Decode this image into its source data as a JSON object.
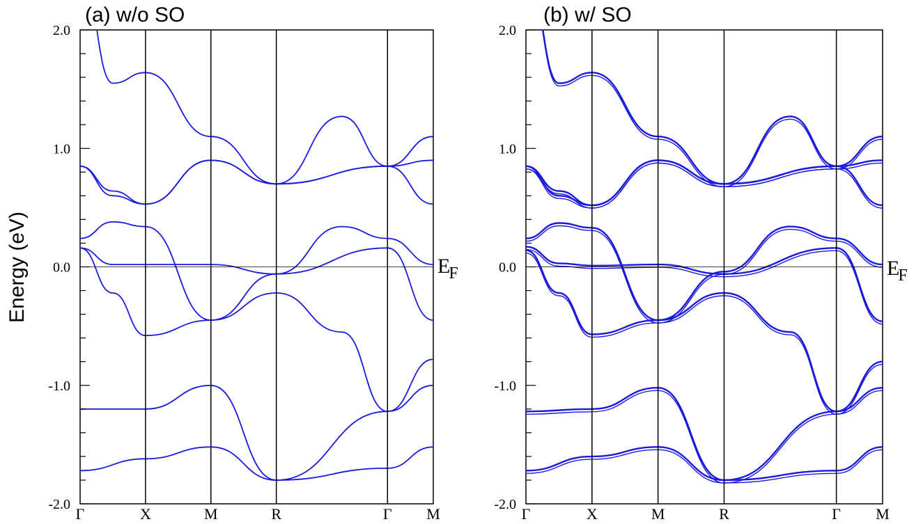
{
  "chart_data": {
    "type": "line",
    "ylabel": "Energy (eV)",
    "fermi_label": {
      "base": "E",
      "sub": "F"
    },
    "band_color": "#1a1adc",
    "ylim": [
      -2.0,
      2.0
    ],
    "k_points": [
      "Γ",
      "X",
      "M",
      "R",
      "Γ",
      "M"
    ],
    "k_positions": [
      0,
      1,
      2,
      3,
      4.7,
      5.4
    ],
    "panels": [
      {
        "title": "(a) w/o SO",
        "yticks": [
          "2.0",
          "1.0",
          "0.0",
          "-1.0",
          "-2.0"
        ],
        "ytick_values": [
          2.0,
          1.0,
          0.0,
          -1.0,
          -2.0
        ],
        "bands": [
          {
            "x": [
              0,
              1,
              2,
              3,
              4.7,
              5.4
            ],
            "y": [
              -1.72,
              -1.62,
              -1.52,
              -1.8,
              -1.7,
              -1.52
            ]
          },
          {
            "x": [
              0,
              1,
              2,
              3,
              4.7,
              5.4
            ],
            "y": [
              -1.2,
              -1.2,
              -1.0,
              -1.8,
              -1.22,
              -1.0
            ]
          },
          {
            "x": [
              0,
              0.5,
              1,
              2,
              3,
              4.0,
              4.7,
              5.4
            ],
            "y": [
              0.16,
              -0.22,
              -0.58,
              -0.45,
              -0.22,
              -0.55,
              -1.22,
              -0.78
            ]
          },
          {
            "x": [
              0,
              0.5,
              1,
              2,
              3,
              4.7,
              5.4
            ],
            "y": [
              0.16,
              0.02,
              0.02,
              0.02,
              -0.06,
              0.16,
              -0.45
            ]
          },
          {
            "x": [
              0,
              0.5,
              1,
              2,
              3,
              4.0,
              4.7,
              5.4
            ],
            "y": [
              0.24,
              0.38,
              0.34,
              -0.45,
              -0.06,
              0.34,
              0.24,
              0.02
            ]
          },
          {
            "x": [
              0,
              0.5,
              1,
              2,
              3,
              4.7,
              5.4
            ],
            "y": [
              0.85,
              0.6,
              0.53,
              0.9,
              0.7,
              0.85,
              0.9
            ]
          },
          {
            "x": [
              0,
              0.5,
              1,
              2,
              3,
              4.7,
              5.4
            ],
            "y": [
              0.85,
              0.64,
              0.53,
              0.9,
              0.7,
              0.85,
              0.53
            ]
          },
          {
            "x": [
              0,
              0.5,
              1,
              2,
              3,
              4.0,
              4.7,
              5.4
            ],
            "y": [
              2.5,
              1.55,
              1.64,
              1.1,
              0.7,
              1.27,
              0.85,
              1.1
            ]
          }
        ]
      },
      {
        "title": "(b) w/ SO",
        "yticks": [
          "2.0",
          "1.0",
          "0.0",
          "-1.0",
          "-2.0"
        ],
        "ytick_values": [
          2.0,
          1.0,
          0.0,
          -1.0,
          -2.0
        ],
        "bands": [
          {
            "x": [
              0,
              1,
              2,
              3,
              4.7,
              5.4
            ],
            "y": [
              -1.72,
              -1.6,
              -1.52,
              -1.8,
              -1.72,
              -1.52
            ]
          },
          {
            "x": [
              0,
              1,
              2,
              3,
              4.7,
              5.4
            ],
            "y": [
              -1.22,
              -1.2,
              -1.02,
              -1.8,
              -1.22,
              -1.02
            ]
          },
          {
            "x": [
              0,
              0.5,
              1,
              2,
              3,
              4.0,
              4.7,
              5.4
            ],
            "y": [
              0.14,
              -0.22,
              -0.57,
              -0.45,
              -0.22,
              -0.55,
              -1.22,
              -0.8
            ]
          },
          {
            "x": [
              0,
              0.5,
              1,
              2,
              3,
              4.7,
              5.4
            ],
            "y": [
              0.17,
              0.03,
              0.01,
              0.02,
              -0.06,
              0.16,
              -0.46
            ]
          },
          {
            "x": [
              0,
              0.5,
              1,
              2,
              3,
              4.0,
              4.7,
              5.4
            ],
            "y": [
              0.24,
              0.37,
              0.33,
              -0.45,
              -0.04,
              0.34,
              0.24,
              0.02
            ]
          },
          {
            "x": [
              0,
              0.5,
              1,
              2,
              3,
              4.7,
              5.4
            ],
            "y": [
              0.85,
              0.6,
              0.52,
              0.9,
              0.7,
              0.85,
              0.9
            ]
          },
          {
            "x": [
              0,
              0.5,
              1,
              2,
              3,
              4.7,
              5.4
            ],
            "y": [
              0.85,
              0.64,
              0.52,
              0.9,
              0.7,
              0.85,
              0.52
            ]
          },
          {
            "x": [
              0,
              0.5,
              1,
              2,
              3,
              4.0,
              4.7,
              5.4
            ],
            "y": [
              2.5,
              1.55,
              1.64,
              1.1,
              0.7,
              1.27,
              0.85,
              1.1
            ]
          }
        ]
      }
    ]
  }
}
